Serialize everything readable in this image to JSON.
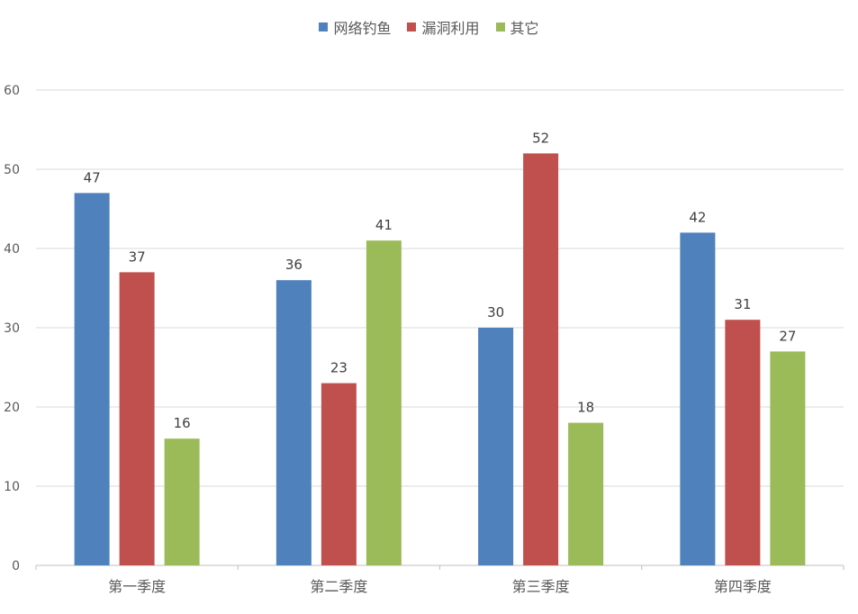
{
  "chart_data": {
    "type": "bar",
    "categories": [
      "第一季度",
      "第二季度",
      "第三季度",
      "第四季度"
    ],
    "series": [
      {
        "name": "网络钓鱼",
        "color": "#4F81BD",
        "values": [
          47,
          36,
          30,
          42
        ]
      },
      {
        "name": "漏洞利用",
        "color": "#C0504D",
        "values": [
          37,
          23,
          52,
          31
        ]
      },
      {
        "name": "其它",
        "color": "#9BBB59",
        "values": [
          16,
          41,
          18,
          27
        ]
      }
    ],
    "title": "",
    "xlabel": "",
    "ylabel": "",
    "ylim": [
      0,
      60
    ],
    "yticks": [
      0,
      10,
      20,
      30,
      40,
      50,
      60
    ],
    "grid": true,
    "legend_position": "top-center",
    "data_labels": true
  }
}
